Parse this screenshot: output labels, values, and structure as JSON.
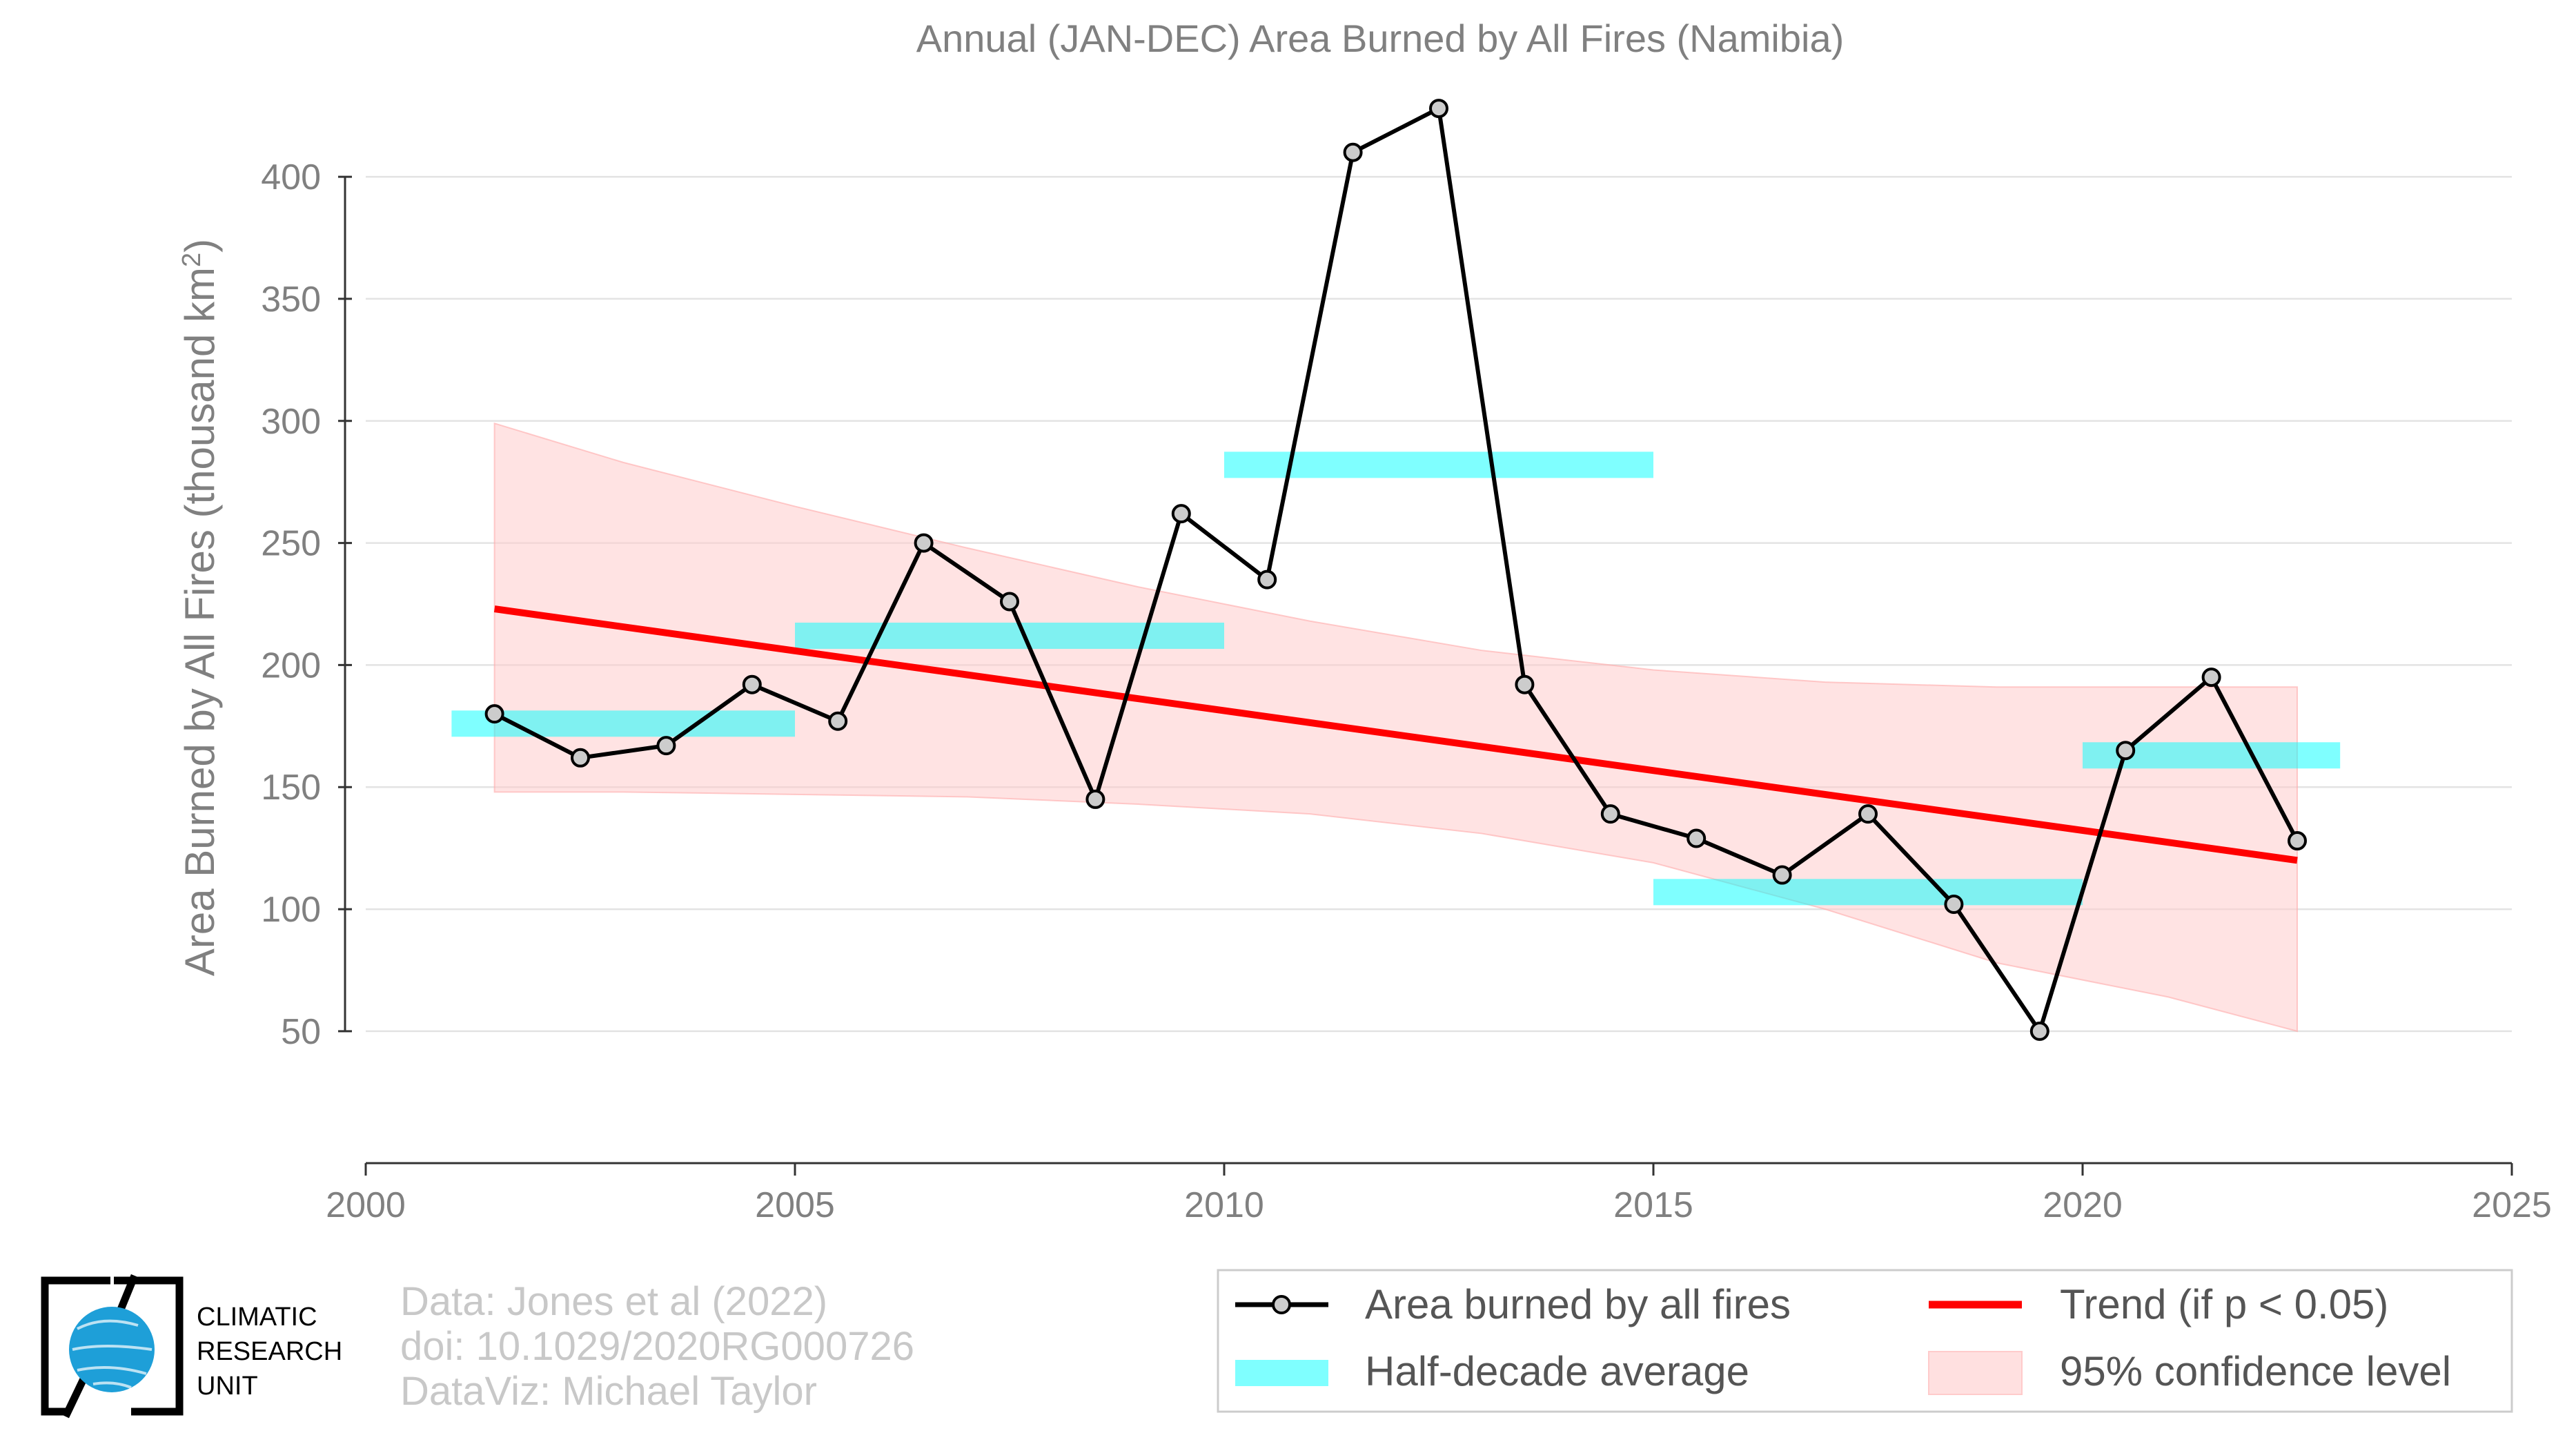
{
  "chart_data": {
    "type": "line",
    "title": "Annual (JAN-DEC) Area Burned by All Fires (Namibia)",
    "xlabel": "",
    "ylabel": "Area Burned by All Fires (thousand km",
    "ylabel_sup": "2",
    "ylabel_end": ")",
    "xlim": [
      2000,
      2025
    ],
    "ylim": [
      20,
      430
    ],
    "xticks": [
      2000,
      2005,
      2010,
      2015,
      2020,
      2025
    ],
    "yticks": [
      50,
      100,
      150,
      200,
      250,
      300,
      350,
      400
    ],
    "grid": "horizontal",
    "legend_position": "bottom-right",
    "series": [
      {
        "name": "Area burned by all fires",
        "color": "#000000",
        "marker_fill": "#cccccc",
        "x": [
          2001.5,
          2002.5,
          2003.5,
          2004.5,
          2005.5,
          2006.5,
          2007.5,
          2008.5,
          2009.5,
          2010.5,
          2011.5,
          2012.5,
          2013.5,
          2014.5,
          2015.5,
          2016.5,
          2017.5,
          2018.5,
          2019.5,
          2020.5,
          2021.5,
          2022.5
        ],
        "values": [
          180,
          162,
          167,
          192,
          177,
          250,
          226,
          145,
          262,
          235,
          410,
          428,
          192,
          139,
          129,
          114,
          139,
          102,
          50,
          165,
          195,
          128
        ]
      }
    ],
    "half_decade_average": {
      "name": "Half-decade average",
      "color": "#00ffff",
      "segments": [
        {
          "x_start": 2001,
          "x_end": 2005,
          "value": 176
        },
        {
          "x_start": 2005,
          "x_end": 2010,
          "value": 212
        },
        {
          "x_start": 2010,
          "x_end": 2015,
          "value": 282
        },
        {
          "x_start": 2015,
          "x_end": 2020,
          "value": 107
        },
        {
          "x_start": 2020,
          "x_end": 2023,
          "value": 163
        }
      ]
    },
    "trend": {
      "name": "Trend (if p < 0.05)",
      "color": "#ff0000",
      "x": [
        2001.5,
        2022.5
      ],
      "values": [
        223,
        120
      ]
    },
    "confidence_band": {
      "name": "95% confidence level",
      "color": "#ffcccc",
      "x": [
        2001.5,
        2003,
        2005,
        2007,
        2009,
        2011,
        2013,
        2015,
        2017,
        2019,
        2021,
        2022.5
      ],
      "upper": [
        299,
        283,
        265,
        248,
        232,
        218,
        206,
        198,
        193,
        191,
        191,
        191
      ],
      "lower": [
        148,
        148,
        147,
        146,
        143,
        139,
        131,
        119,
        100,
        78,
        64,
        50
      ]
    }
  },
  "legend": {
    "items": [
      {
        "label": "Area burned by all fires",
        "kind": "line-marker"
      },
      {
        "label": "Trend (if p < 0.05)",
        "kind": "trend-line"
      },
      {
        "label": "Half-decade average",
        "kind": "cyan-bar"
      },
      {
        "label": "95% confidence level",
        "kind": "pink-band"
      }
    ]
  },
  "credits": {
    "line1": "Data: Jones et al (2022)",
    "line2": "doi: 10.1029/2020RG000726",
    "line3": "DataViz: Michael Taylor"
  },
  "logo": {
    "line1": "CLIMATIC",
    "line2": "RESEARCH",
    "line3": "UNIT",
    "globe_color": "#1e9fd8"
  }
}
